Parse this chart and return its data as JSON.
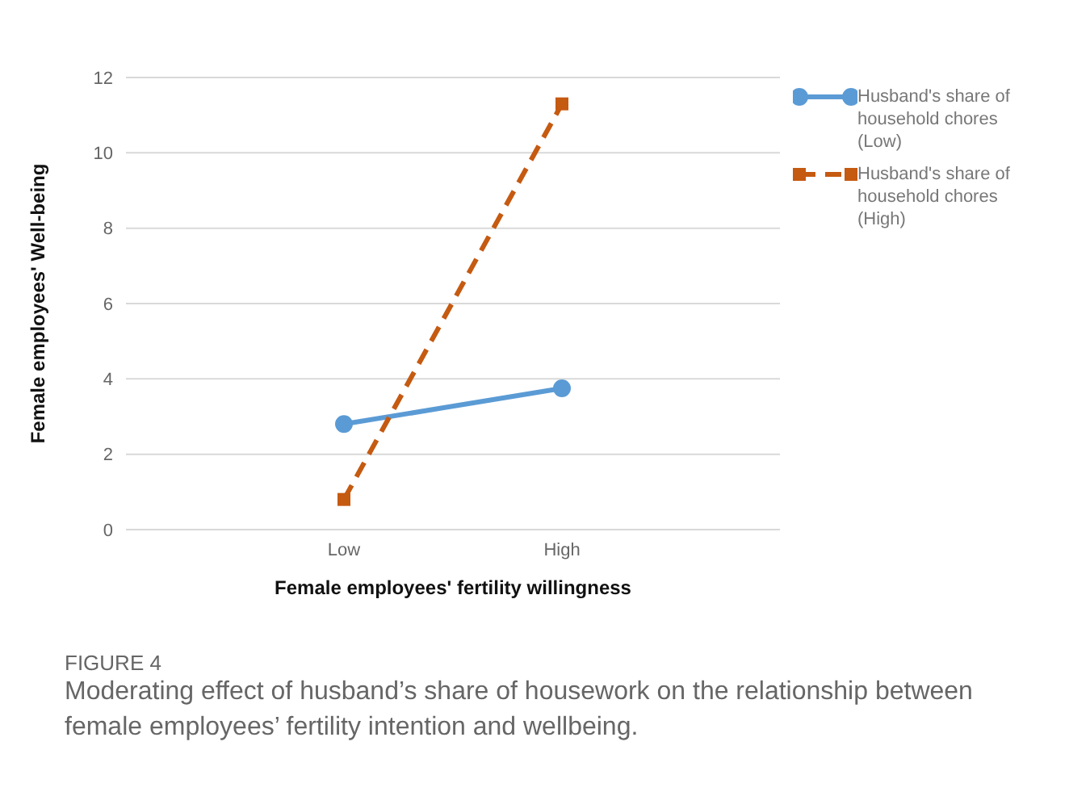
{
  "chart_data": {
    "type": "line",
    "xlabel": "Female employees' fertility willingness",
    "ylabel": "Female employees' Well-being",
    "categories": [
      "Low",
      "High"
    ],
    "series": [
      {
        "name": "Husband's share of household chores (Low)",
        "color": "#5b9bd5",
        "values": [
          2.8,
          3.75
        ],
        "marker": "circle",
        "line_style": "solid"
      },
      {
        "name": "Husband's share of household chores (High)",
        "color": "#c55a11",
        "values": [
          0.8,
          11.3
        ],
        "marker": "square",
        "line_style": "dashed"
      }
    ],
    "ylim": [
      0,
      12
    ],
    "yticks": [
      0,
      2,
      4,
      6,
      8,
      10,
      12
    ],
    "grid": "y",
    "legend": "top right",
    "annotations": [
      "FIGURE 4",
      "Moderating effect of husband’s share of housework on the relationship between female employees’ fertility intention and wellbeing."
    ]
  }
}
